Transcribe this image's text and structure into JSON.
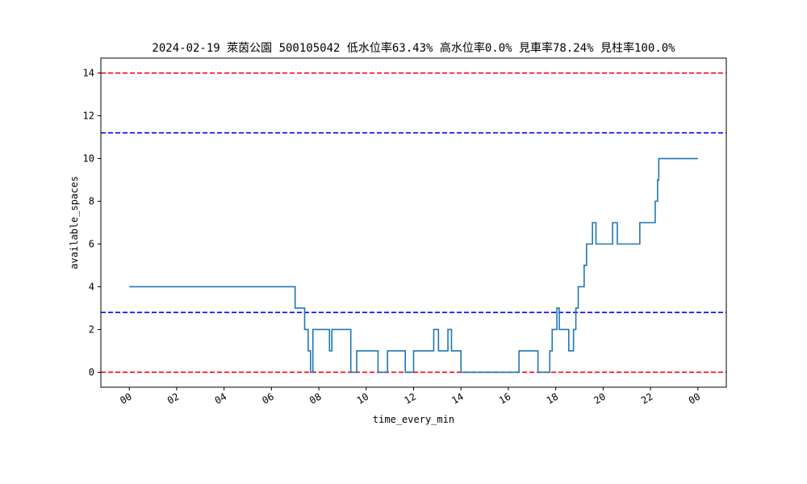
{
  "chart_data": {
    "type": "line",
    "title": "2024-02-19 萊茵公園 500105042 低水位率63.43% 高水位率0.0% 見車率78.24% 見柱率100.0%",
    "xlabel": "time_every_min",
    "ylabel": "available_spaces",
    "xlim_hours": [
      -1.2,
      25.2
    ],
    "ylim": [
      -0.7,
      14.7
    ],
    "x_ticks": [
      {
        "hour": 0,
        "label": "00"
      },
      {
        "hour": 2,
        "label": "02"
      },
      {
        "hour": 4,
        "label": "04"
      },
      {
        "hour": 6,
        "label": "06"
      },
      {
        "hour": 8,
        "label": "08"
      },
      {
        "hour": 10,
        "label": "10"
      },
      {
        "hour": 12,
        "label": "12"
      },
      {
        "hour": 14,
        "label": "14"
      },
      {
        "hour": 16,
        "label": "16"
      },
      {
        "hour": 18,
        "label": "18"
      },
      {
        "hour": 20,
        "label": "20"
      },
      {
        "hour": 22,
        "label": "22"
      },
      {
        "hour": 24,
        "label": "00"
      }
    ],
    "y_ticks": [
      0,
      2,
      4,
      6,
      8,
      10,
      12,
      14
    ],
    "reference_lines": [
      {
        "y": 14,
        "color": "#ff0000",
        "style": "dashed"
      },
      {
        "y": 11.2,
        "color": "#0000ff",
        "style": "dashed"
      },
      {
        "y": 2.8,
        "color": "#0000ff",
        "style": "dashed"
      },
      {
        "y": 0,
        "color": "#ff0000",
        "style": "dashed"
      }
    ],
    "series": [
      {
        "color": "#1f77b4",
        "step": true,
        "points": [
          [
            0,
            4
          ],
          [
            7.0,
            3
          ],
          [
            7.4,
            2
          ],
          [
            7.55,
            1
          ],
          [
            7.65,
            0
          ],
          [
            7.75,
            2
          ],
          [
            8.45,
            1
          ],
          [
            8.55,
            2
          ],
          [
            9.35,
            0
          ],
          [
            9.6,
            1
          ],
          [
            10.5,
            0
          ],
          [
            10.9,
            1
          ],
          [
            11.65,
            0
          ],
          [
            12.0,
            1
          ],
          [
            12.85,
            2
          ],
          [
            13.05,
            1
          ],
          [
            13.45,
            2
          ],
          [
            13.6,
            1
          ],
          [
            14.0,
            0
          ],
          [
            16.45,
            1
          ],
          [
            17.25,
            0
          ],
          [
            17.75,
            1
          ],
          [
            17.85,
            2
          ],
          [
            18.05,
            3
          ],
          [
            18.15,
            2
          ],
          [
            18.55,
            1
          ],
          [
            18.75,
            2
          ],
          [
            18.85,
            3
          ],
          [
            18.95,
            4
          ],
          [
            19.2,
            5
          ],
          [
            19.3,
            6
          ],
          [
            19.55,
            7
          ],
          [
            19.7,
            6
          ],
          [
            20.4,
            7
          ],
          [
            20.6,
            6
          ],
          [
            21.55,
            7
          ],
          [
            22.2,
            8
          ],
          [
            22.3,
            9
          ],
          [
            22.35,
            10
          ],
          [
            24.0,
            10
          ]
        ]
      }
    ],
    "grid": false,
    "x_tick_rotation_deg": 30
  }
}
